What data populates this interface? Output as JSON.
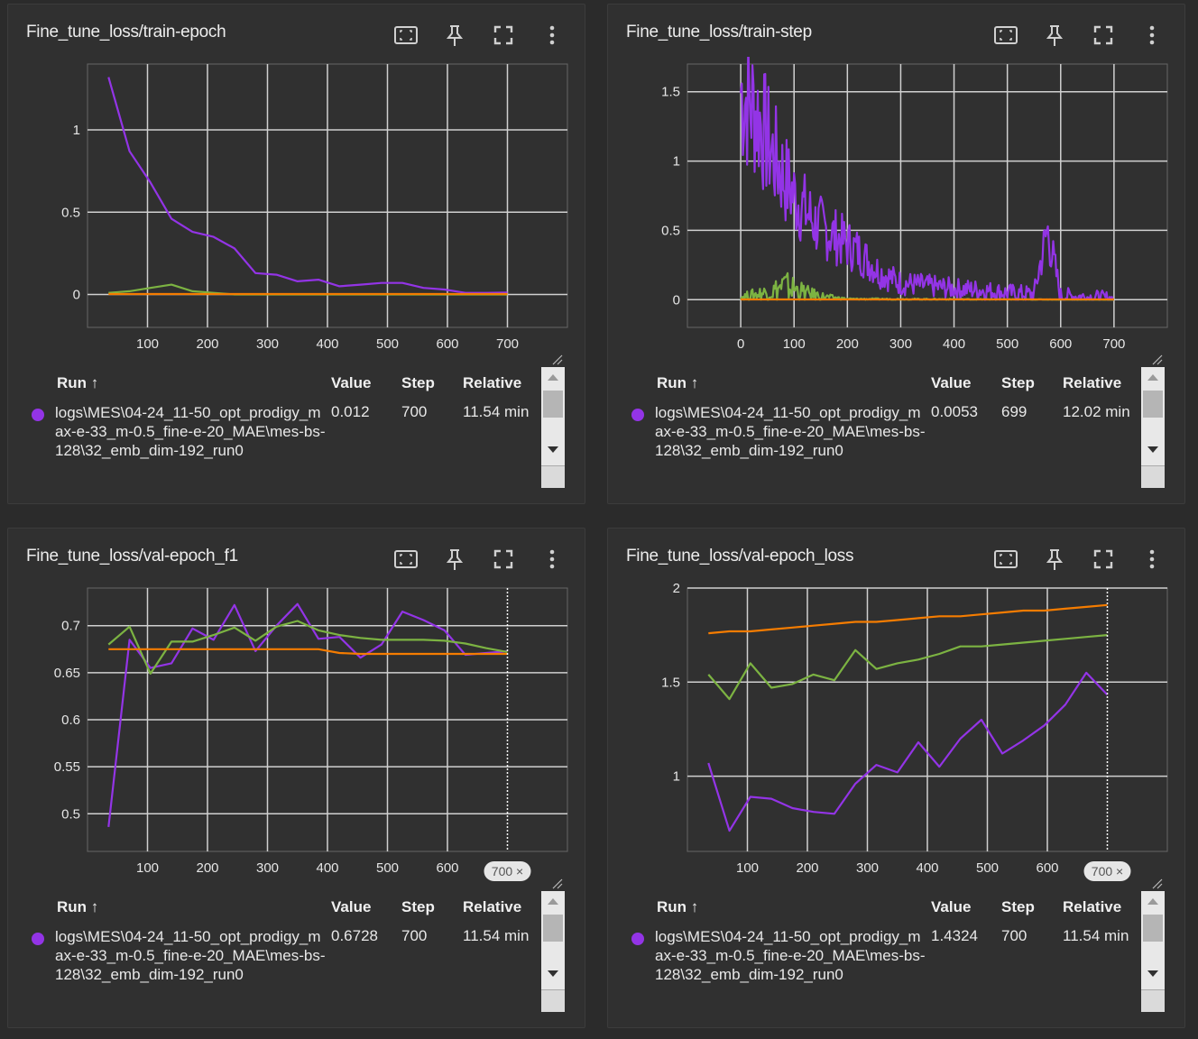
{
  "toolbar_icons": [
    "fit-to-data-icon",
    "pin-icon",
    "fullscreen-icon",
    "more-vert-icon"
  ],
  "colors": {
    "purple": "#9334e6",
    "green": "#7cb342",
    "orange": "#f57c00",
    "grid": "#d0d0d0",
    "axis": "#e0e0e0"
  },
  "table": {
    "headers": {
      "run": "Run ↑",
      "value": "Value",
      "step": "Step",
      "relative": "Relative"
    },
    "run_name": "logs\\MES\\04-24_11-50_opt_prodigy_max-e-33_m-0.5_fine-e-20_MAE\\mes-bs-128\\32_emb_dim-192_run0"
  },
  "cards": [
    {
      "title": "Fine_tune_loss/train-epoch",
      "row": {
        "value": "0.012",
        "step": "700",
        "relative": "11.54 min"
      }
    },
    {
      "title": "Fine_tune_loss/train-step",
      "row": {
        "value": "0.0053",
        "step": "699",
        "relative": "12.02 min"
      }
    },
    {
      "title": "Fine_tune_loss/val-epoch_f1",
      "row": {
        "value": "0.6728",
        "step": "700",
        "relative": "11.54 min"
      },
      "cursor_label": "700 ×"
    },
    {
      "title": "Fine_tune_loss/val-epoch_loss",
      "row": {
        "value": "1.4324",
        "step": "700",
        "relative": "11.54 min"
      },
      "cursor_label": "700 ×"
    }
  ],
  "chart_data": [
    {
      "type": "line",
      "title": "Fine_tune_loss/train-epoch",
      "xlim": [
        0,
        800
      ],
      "ylim": [
        -0.2,
        1.4
      ],
      "xticks": [
        "100",
        "200",
        "300",
        "400",
        "500",
        "600",
        "700"
      ],
      "yticks": [
        {
          "v": 0,
          "label": "0"
        },
        {
          "v": 0.5,
          "label": "0.5"
        },
        {
          "v": 1,
          "label": "1"
        }
      ],
      "grid": true,
      "series": [
        {
          "color": "#9334e6",
          "x": [
            35,
            70,
            105,
            140,
            175,
            210,
            245,
            280,
            315,
            350,
            385,
            420,
            455,
            490,
            525,
            560,
            595,
            630,
            665,
            700
          ],
          "y": [
            1.32,
            0.87,
            0.68,
            0.46,
            0.38,
            0.35,
            0.28,
            0.13,
            0.12,
            0.08,
            0.09,
            0.05,
            0.06,
            0.07,
            0.07,
            0.04,
            0.03,
            0.01,
            0.01,
            0.012
          ]
        },
        {
          "color": "#7cb342",
          "x": [
            35,
            70,
            105,
            140,
            175,
            210,
            245,
            280,
            315,
            350,
            385,
            420,
            455,
            490,
            525,
            560,
            595,
            630,
            665,
            700
          ],
          "y": [
            0.01,
            0.02,
            0.04,
            0.06,
            0.02,
            0.01,
            0.0,
            0.0,
            0.0,
            0.0,
            0.0,
            0.0,
            0.0,
            0.0,
            0.0,
            0.0,
            0.0,
            0.0,
            0.0,
            0.0
          ]
        },
        {
          "color": "#f57c00",
          "x": [
            35,
            700
          ],
          "y": [
            0.003,
            0.003
          ]
        }
      ]
    },
    {
      "type": "line",
      "title": "Fine_tune_loss/train-step",
      "xlim": [
        -100,
        800
      ],
      "ylim": [
        -0.2,
        1.7
      ],
      "xticks": [
        "0",
        "100",
        "200",
        "300",
        "400",
        "500",
        "600",
        "700"
      ],
      "yticks": [
        {
          "v": 0,
          "label": "0"
        },
        {
          "v": 0.5,
          "label": "0.5"
        },
        {
          "v": 1,
          "label": "1"
        },
        {
          "v": 1.5,
          "label": "1.5"
        }
      ],
      "grid": true,
      "noisy": true,
      "series": [
        {
          "color": "#9334e6",
          "x": [
            0,
            30,
            60,
            100,
            140,
            180,
            220,
            260,
            300,
            350,
            400,
            450,
            500,
            550,
            575,
            600,
            650,
            700
          ],
          "y": [
            1.5,
            1.35,
            1.05,
            0.75,
            0.55,
            0.45,
            0.35,
            0.2,
            0.12,
            0.1,
            0.08,
            0.07,
            0.05,
            0.04,
            0.5,
            0.03,
            0.02,
            0.0053
          ]
        },
        {
          "color": "#7cb342",
          "x": [
            0,
            30,
            60,
            80,
            100,
            120,
            160,
            200,
            700
          ],
          "y": [
            0.02,
            0.04,
            0.06,
            0.1,
            0.08,
            0.05,
            0.02,
            0.005,
            0.0
          ]
        },
        {
          "color": "#f57c00",
          "x": [
            0,
            700
          ],
          "y": [
            0.002,
            0.002
          ]
        }
      ]
    },
    {
      "type": "line",
      "title": "Fine_tune_loss/val-epoch_f1",
      "xlim": [
        0,
        800
      ],
      "ylim": [
        0.46,
        0.74
      ],
      "xticks": [
        "100",
        "200",
        "300",
        "400",
        "500",
        "600"
      ],
      "yticks": [
        {
          "v": 0.5,
          "label": "0.5"
        },
        {
          "v": 0.55,
          "label": "0.55"
        },
        {
          "v": 0.6,
          "label": "0.6"
        },
        {
          "v": 0.65,
          "label": "0.65"
        },
        {
          "v": 0.7,
          "label": "0.7"
        }
      ],
      "grid": true,
      "cursor_x": 700,
      "series": [
        {
          "color": "#9334e6",
          "x": [
            35,
            70,
            105,
            140,
            175,
            210,
            245,
            280,
            315,
            350,
            385,
            420,
            455,
            490,
            525,
            560,
            595,
            630,
            665,
            700
          ],
          "y": [
            0.486,
            0.685,
            0.655,
            0.66,
            0.697,
            0.685,
            0.722,
            0.673,
            0.7,
            0.723,
            0.686,
            0.688,
            0.666,
            0.68,
            0.715,
            0.706,
            0.695,
            0.669,
            0.671,
            0.6728
          ]
        },
        {
          "color": "#7cb342",
          "x": [
            35,
            70,
            105,
            140,
            175,
            210,
            245,
            280,
            315,
            350,
            385,
            420,
            455,
            490,
            525,
            560,
            595,
            630,
            665,
            700
          ],
          "y": [
            0.68,
            0.699,
            0.649,
            0.683,
            0.683,
            0.69,
            0.698,
            0.684,
            0.699,
            0.705,
            0.695,
            0.69,
            0.687,
            0.685,
            0.685,
            0.685,
            0.684,
            0.681,
            0.676,
            0.672
          ]
        },
        {
          "color": "#f57c00",
          "x": [
            35,
            70,
            105,
            140,
            175,
            210,
            245,
            280,
            315,
            350,
            385,
            420,
            455,
            490,
            525,
            560,
            595,
            630,
            665,
            700
          ],
          "y": [
            0.675,
            0.675,
            0.675,
            0.675,
            0.675,
            0.675,
            0.675,
            0.675,
            0.675,
            0.675,
            0.675,
            0.671,
            0.67,
            0.67,
            0.67,
            0.67,
            0.67,
            0.67,
            0.67,
            0.67
          ]
        }
      ]
    },
    {
      "type": "line",
      "title": "Fine_tune_loss/val-epoch_loss",
      "xlim": [
        0,
        800
      ],
      "ylim": [
        0.6,
        2.0
      ],
      "xticks": [
        "100",
        "200",
        "300",
        "400",
        "500",
        "600"
      ],
      "yticks": [
        {
          "v": 1,
          "label": "1"
        },
        {
          "v": 1.5,
          "label": "1.5"
        },
        {
          "v": 2,
          "label": "2"
        }
      ],
      "grid": true,
      "cursor_x": 700,
      "series": [
        {
          "color": "#9334e6",
          "x": [
            35,
            70,
            105,
            140,
            175,
            210,
            245,
            280,
            315,
            350,
            385,
            420,
            455,
            490,
            525,
            560,
            595,
            630,
            665,
            700
          ],
          "y": [
            1.07,
            0.71,
            0.89,
            0.88,
            0.83,
            0.81,
            0.8,
            0.96,
            1.06,
            1.02,
            1.18,
            1.05,
            1.2,
            1.3,
            1.12,
            1.19,
            1.27,
            1.38,
            1.55,
            1.4324
          ]
        },
        {
          "color": "#7cb342",
          "x": [
            35,
            70,
            105,
            140,
            175,
            210,
            245,
            280,
            315,
            350,
            385,
            420,
            455,
            490,
            525,
            560,
            595,
            630,
            665,
            700
          ],
          "y": [
            1.54,
            1.41,
            1.6,
            1.47,
            1.49,
            1.54,
            1.51,
            1.67,
            1.57,
            1.6,
            1.62,
            1.65,
            1.69,
            1.69,
            1.7,
            1.71,
            1.72,
            1.73,
            1.74,
            1.75
          ]
        },
        {
          "color": "#f57c00",
          "x": [
            35,
            70,
            105,
            140,
            175,
            210,
            245,
            280,
            315,
            350,
            385,
            420,
            455,
            490,
            525,
            560,
            595,
            630,
            665,
            700
          ],
          "y": [
            1.76,
            1.77,
            1.77,
            1.78,
            1.79,
            1.8,
            1.81,
            1.82,
            1.82,
            1.83,
            1.84,
            1.85,
            1.85,
            1.86,
            1.87,
            1.88,
            1.88,
            1.89,
            1.9,
            1.91
          ]
        }
      ]
    }
  ]
}
